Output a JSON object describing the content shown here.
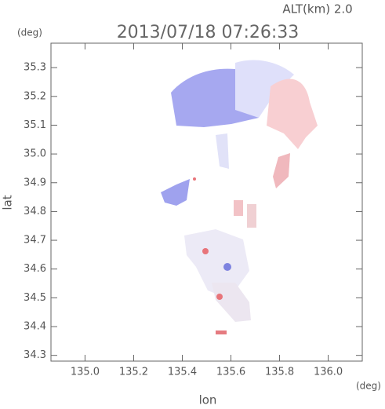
{
  "chart_data": {
    "type": "scatter",
    "title": "2013/07/18 07:26:33",
    "altitude_label": "ALT(km)  2.0",
    "y_unit": "(deg)",
    "x_unit": "(deg)",
    "xlabel": "lon",
    "ylabel": "lat",
    "xlim": [
      134.86,
      136.14
    ],
    "ylim": [
      34.28,
      35.385
    ],
    "xticks": [
      {
        "value": 135,
        "label": "135.0"
      },
      135.2,
      135.4,
      135.6,
      135.8,
      {
        "value": 136,
        "label": "136.0"
      }
    ],
    "yticks": [
      34.3,
      34.4,
      34.5,
      34.6,
      34.7,
      34.8,
      34.9,
      {
        "value": 35,
        "label": "35.0"
      },
      35.1,
      35.2,
      35.3
    ]
  }
}
